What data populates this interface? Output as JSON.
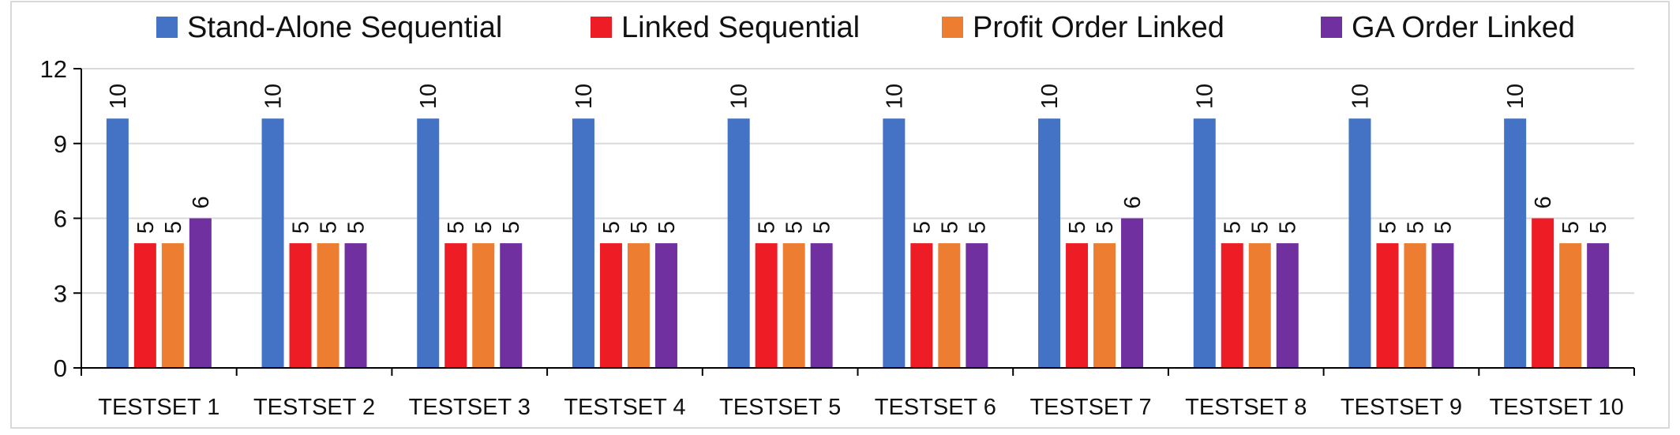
{
  "chart_data": {
    "type": "bar",
    "title": "",
    "xlabel": "",
    "ylabel": "",
    "ylim": [
      0,
      12
    ],
    "yticks": [
      0,
      3,
      6,
      9,
      12
    ],
    "grid": true,
    "legend_position": "top",
    "categories": [
      "TESTSET 1",
      "TESTSET 2",
      "TESTSET 3",
      "TESTSET 4",
      "TESTSET 5",
      "TESTSET 6",
      "TESTSET 7",
      "TESTSET 8",
      "TESTSET 9",
      "TESTSET 10"
    ],
    "series": [
      {
        "name": "Stand-Alone Sequential",
        "color": "#4472C4",
        "values": [
          10,
          10,
          10,
          10,
          10,
          10,
          10,
          10,
          10,
          10
        ]
      },
      {
        "name": "Linked Sequential",
        "color": "#EE1C25",
        "values": [
          5,
          5,
          5,
          5,
          5,
          5,
          5,
          5,
          5,
          6
        ]
      },
      {
        "name": "Profit Order Linked",
        "color": "#ED7D31",
        "values": [
          5,
          5,
          5,
          5,
          5,
          5,
          5,
          5,
          5,
          5
        ]
      },
      {
        "name": "GA Order Linked",
        "color": "#7030A0",
        "values": [
          6,
          5,
          5,
          5,
          5,
          5,
          6,
          5,
          5,
          5
        ]
      }
    ]
  }
}
